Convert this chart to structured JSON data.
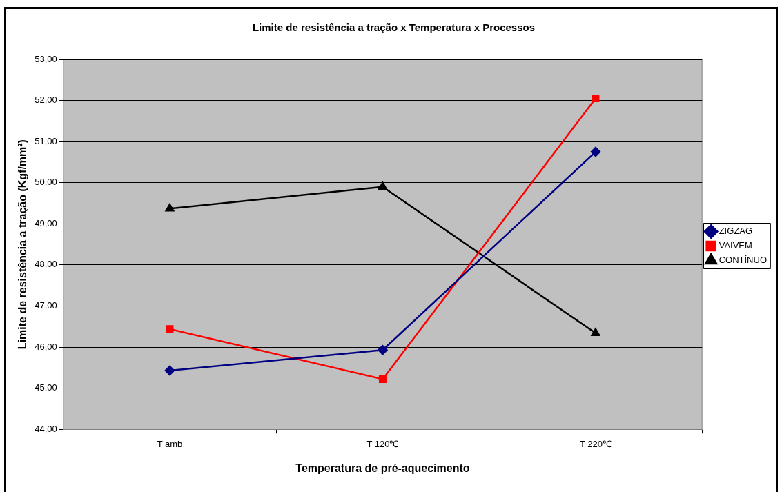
{
  "chart_data": {
    "type": "line",
    "title": "Limite de resistência a tração x Temperatura x Processos",
    "xlabel": "Temperatura de pré-aquecimento",
    "ylabel": "Limite de resistência a tração (Kgf/mm²)",
    "categories": [
      "T amb",
      "T 120℃",
      "T 220℃"
    ],
    "series": [
      {
        "name": "ZIGZAG",
        "color": "#000080",
        "marker": "diamond",
        "values": [
          45.43,
          45.93,
          50.75
        ]
      },
      {
        "name": "VAIVEM",
        "color": "#ff0000",
        "marker": "square",
        "values": [
          46.44,
          45.22,
          52.05
        ]
      },
      {
        "name": "CONTÍNUO",
        "color": "#000000",
        "marker": "triangle",
        "values": [
          49.37,
          49.9,
          46.34
        ]
      }
    ],
    "ylim": [
      44,
      53
    ],
    "yticks": [
      {
        "value": 44,
        "label": "44,00"
      },
      {
        "value": 45,
        "label": "45,00"
      },
      {
        "value": 46,
        "label": "46,00"
      },
      {
        "value": 47,
        "label": "47,00"
      },
      {
        "value": 48,
        "label": "48,00"
      },
      {
        "value": 49,
        "label": "49,00"
      },
      {
        "value": 50,
        "label": "50,00"
      },
      {
        "value": 51,
        "label": "51,00"
      },
      {
        "value": 52,
        "label": "52,00"
      },
      {
        "value": 53,
        "label": "53,00"
      }
    ],
    "grid": "y",
    "legend": "right",
    "line_style": "solid"
  }
}
